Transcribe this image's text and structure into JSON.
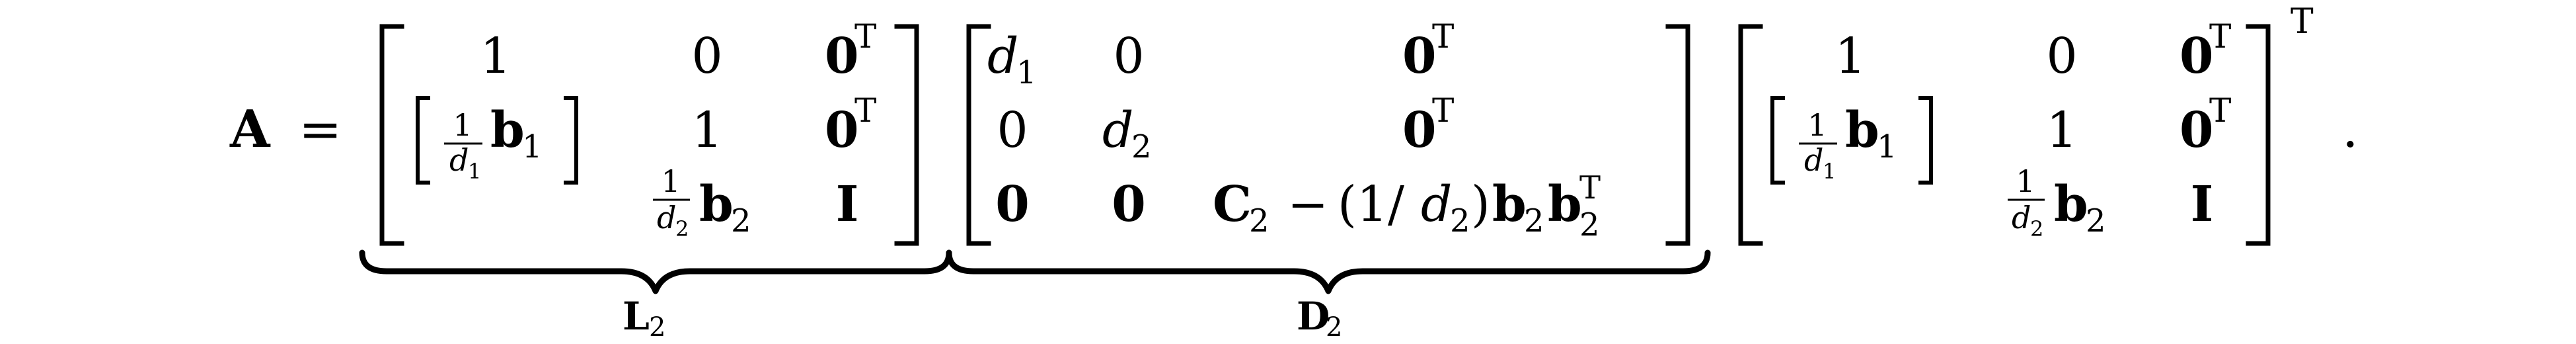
{
  "equation": {
    "lhs": "A",
    "equals": "=",
    "period": ".",
    "outer_transpose": "T",
    "L2": {
      "label_letter": "L",
      "label_sub": "2",
      "r1": [
        "1",
        "0",
        "0",
        "T"
      ],
      "r2_frac_num": "1",
      "r2_frac_den": "d",
      "r2_frac_den_sub": "1",
      "r2_vec": "b",
      "r2_vec_sub": "1",
      "r2c2": "1",
      "r2c3": "0",
      "r2c3_sup": "T",
      "r3_frac_num": "1",
      "r3_frac_den": "d",
      "r3_frac_den_sub": "2",
      "r3_vec": "b",
      "r3_vec_sub": "2",
      "r3c3": "I"
    },
    "D2": {
      "label_letter": "D",
      "label_sub": "2",
      "r1c1": "d",
      "r1c1_sub": "1",
      "r1c2": "0",
      "r1c3": "0",
      "r1c3_sup": "T",
      "r2c1": "0",
      "r2c2": "d",
      "r2c2_sub": "2",
      "r2c3": "0",
      "r2c3_sup": "T",
      "r3c1": "0",
      "r3c2": "0",
      "r3c3_C": "C",
      "r3c3_C_sub": "2",
      "r3c3_minus": "−",
      "r3c3_paren": "(1/",
      "r3c3_d": "d",
      "r3c3_d_sub": "2",
      "r3c3_close": ")",
      "r3c3_b1": "b",
      "r3c3_b1_sub": "2",
      "r3c3_b2": "b",
      "r3c3_b2_sub": "2",
      "r3c3_b2_sup": "T"
    },
    "LT": {
      "r1c1": "1",
      "r1c2": "0",
      "r1c3": "0",
      "r1c3_sup": "T",
      "r2_frac_num": "1",
      "r2_frac_den": "d",
      "r2_frac_den_sub": "1",
      "r2_vec": "b",
      "r2_vec_sub": "1",
      "r2c2": "1",
      "r2c3": "0",
      "r2c3_sup": "T",
      "r3_frac_num": "1",
      "r3_frac_den": "d",
      "r3_frac_den_sub": "2",
      "r3_vec": "b",
      "r3_vec_sub": "2",
      "r3c3": "I"
    }
  }
}
